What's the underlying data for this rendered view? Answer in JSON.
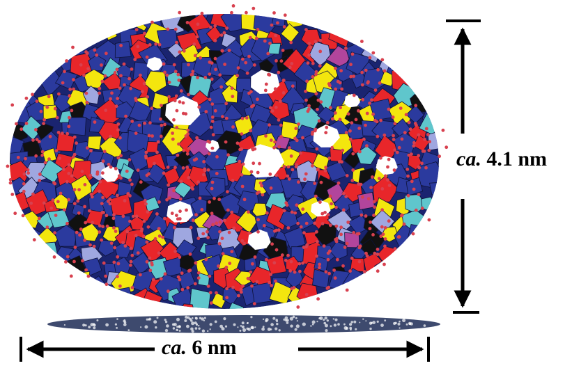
{
  "figure": {
    "height_dimension": {
      "prefix": "ca.",
      "value": "4.1 nm"
    },
    "width_dimension": {
      "prefix": "ca.",
      "value": "6  nm"
    }
  },
  "palette": {
    "blue": "#2b3a9e",
    "dark_blue": "#1a2470",
    "red": "#e8262a",
    "yellow": "#f3e60e",
    "cyan": "#5fc6cc",
    "lavender": "#9fa7e0",
    "magenta": "#b2459c",
    "black": "#111111",
    "oxygen": "#d8414f",
    "shadow": "#1c2a55"
  },
  "icons": {
    "structure": "polyoxometalate-cluster-icon",
    "arrow": "double-headed-arrow-icon"
  }
}
